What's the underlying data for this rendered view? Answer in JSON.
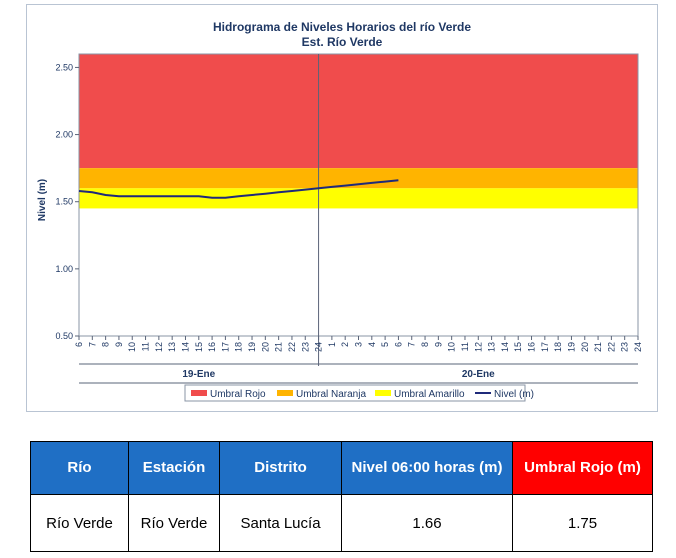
{
  "chart_data": {
    "type": "line",
    "title": "Hidrograma de Niveles Horarios del río Verde",
    "subtitle": "Est. Río Verde",
    "ylabel": "Nivel (m)",
    "xlabel": "",
    "ylim": [
      0.5,
      2.6
    ],
    "yticks": [
      "0.50",
      "1.00",
      "1.50",
      "2.00",
      "2.50"
    ],
    "x_tick_labels": [
      "6",
      "7",
      "8",
      "9",
      "10",
      "11",
      "12",
      "13",
      "14",
      "15",
      "16",
      "17",
      "18",
      "19",
      "20",
      "21",
      "22",
      "23",
      "24",
      "1",
      "2",
      "3",
      "4",
      "5",
      "6",
      "7",
      "8",
      "9",
      "10",
      "11",
      "12",
      "13",
      "14",
      "15",
      "16",
      "17",
      "18",
      "19",
      "20",
      "21",
      "22",
      "23",
      "24"
    ],
    "day_labels": [
      "19-Ene",
      "20-Ene"
    ],
    "day_divider_x": 18,
    "thresholds": [
      {
        "name": "Umbral Rojo",
        "color": "#f04c4c",
        "from": 1.75,
        "to": 2.6
      },
      {
        "name": "Umbral Naranja",
        "color": "#ffb400",
        "from": 1.6,
        "to": 1.75
      },
      {
        "name": "Umbral Amarillo",
        "color": "#ffff00",
        "from": 1.45,
        "to": 1.6
      }
    ],
    "series": [
      {
        "name": "Nivel (m)",
        "color": "#1f2a7a",
        "x": [
          0,
          1,
          2,
          3,
          4,
          5,
          6,
          7,
          8,
          9,
          10,
          11,
          12,
          13,
          14,
          15,
          16,
          17,
          18,
          19,
          20,
          21,
          22,
          23,
          24
        ],
        "y": [
          1.58,
          1.57,
          1.55,
          1.54,
          1.54,
          1.54,
          1.54,
          1.54,
          1.54,
          1.54,
          1.53,
          1.53,
          1.54,
          1.55,
          1.56,
          1.57,
          1.58,
          1.59,
          1.6,
          1.61,
          1.62,
          1.63,
          1.64,
          1.65,
          1.66
        ]
      }
    ],
    "legend": [
      "Umbral Rojo",
      "Umbral Naranja",
      "Umbral Amarillo",
      "Nivel (m)"
    ],
    "legend_position": "bottom",
    "grid": false
  },
  "table": {
    "headers": [
      "Río",
      "Estación",
      "Distrito",
      "Nivel 06:00 horas (m)",
      "Umbral Rojo (m)"
    ],
    "row": [
      "Río Verde",
      "Río Verde",
      "Santa Lucía",
      "1.66",
      "1.75"
    ]
  }
}
